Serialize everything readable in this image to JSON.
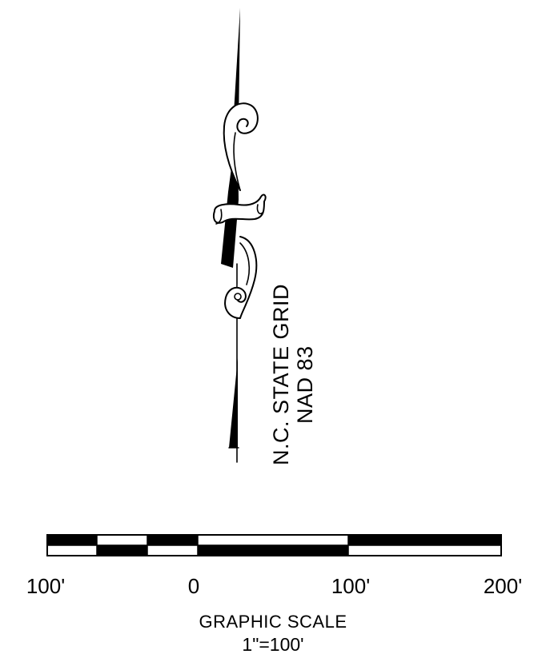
{
  "north_arrow": {
    "label_line1": "N.C. STATE GRID",
    "label_line2": "NAD 83",
    "icon": "north-arrow-icon"
  },
  "scale_bar": {
    "tick_labels": [
      "100'",
      "0",
      "100'",
      "200'"
    ],
    "title": "GRAPHIC SCALE",
    "ratio": "1\"=100'",
    "units_per_inch": 100
  },
  "colors": {
    "ink": "#000000",
    "paper": "#ffffff"
  }
}
